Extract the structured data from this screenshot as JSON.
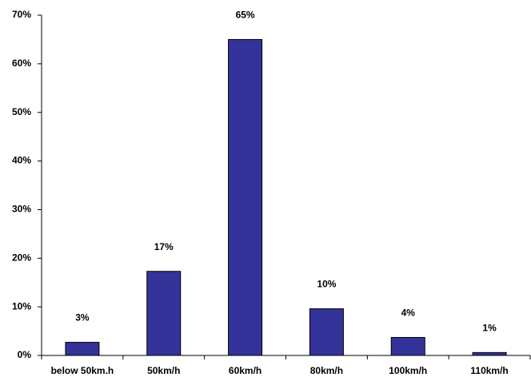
{
  "chart_data": {
    "type": "bar",
    "categories": [
      "below 50km.h",
      "50km/h",
      "60km/h",
      "80km/h",
      "100km/h",
      "110km/h"
    ],
    "values": [
      2.7,
      17.3,
      65,
      9.6,
      3.7,
      0.6
    ],
    "value_labels": [
      "3%",
      "17%",
      "65%",
      "10%",
      "4%",
      "1%"
    ],
    "color": "#333399",
    "ylim": [
      0,
      70
    ],
    "yticks": [
      {
        "value": 0,
        "label": "0%"
      },
      {
        "value": 10,
        "label": "10%"
      },
      {
        "value": 20,
        "label": "20%"
      },
      {
        "value": 30,
        "label": "30%"
      },
      {
        "value": 40,
        "label": "40%"
      },
      {
        "value": 50,
        "label": "50%"
      },
      {
        "value": 60,
        "label": "60%"
      },
      {
        "value": 70,
        "label": "70%"
      }
    ],
    "grid": false
  }
}
